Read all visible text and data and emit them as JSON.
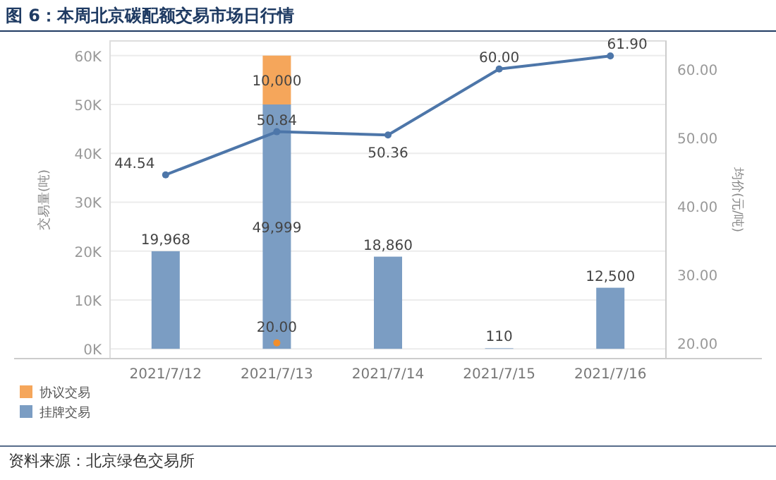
{
  "chart_data": {
    "type": "bar",
    "title": "图 6：本周北京碳配额交易市场日行情",
    "ylabel": "交易量(吨)",
    "y2label": "均价(元/吨)",
    "categories": [
      "2021/7/12",
      "2021/7/13",
      "2021/7/14",
      "2021/7/15",
      "2021/7/16"
    ],
    "stacked": true,
    "series": [
      {
        "name": "挂牌交易",
        "color": "#7b9dc3",
        "values": [
          19968,
          49999,
          18860,
          110,
          12500
        ],
        "value_labels": [
          "19,968",
          "49,999",
          "18,860",
          "110",
          "12,500"
        ]
      },
      {
        "name": "协议交易",
        "color": "#f5a65b",
        "values": [
          null,
          10000,
          null,
          null,
          null
        ],
        "value_labels": [
          null,
          "10,000",
          null,
          null,
          null
        ]
      },
      {
        "type": "line",
        "axis": "y2",
        "color": "#4d76a9",
        "marker": "circle",
        "values": [
          44.54,
          50.84,
          50.36,
          60.0,
          61.9
        ],
        "value_labels": [
          "44.54",
          "50.84",
          "50.36",
          "60.00",
          "61.90"
        ]
      },
      {
        "type": "scatter",
        "axis": "y2",
        "color": "#f28e2b",
        "marker": "circle",
        "values": [
          null,
          20.0,
          null,
          null,
          null
        ],
        "value_labels": [
          null,
          "20.00",
          null,
          null,
          null
        ]
      }
    ],
    "ylim": [
      -2000,
      63000
    ],
    "yticks": [
      {
        "value": 0,
        "label": "0K"
      },
      {
        "value": 10000,
        "label": "10K"
      },
      {
        "value": 20000,
        "label": "20K"
      },
      {
        "value": 30000,
        "label": "30K"
      },
      {
        "value": 40000,
        "label": "40K"
      },
      {
        "value": 50000,
        "label": "50K"
      },
      {
        "value": 60000,
        "label": "60K"
      }
    ],
    "y2lim": [
      17.7,
      64.1
    ],
    "y2ticks": [
      {
        "value": 20,
        "label": "20.00"
      },
      {
        "value": 30,
        "label": "30.00"
      },
      {
        "value": 40,
        "label": "40.00"
      },
      {
        "value": 50,
        "label": "50.00"
      },
      {
        "value": 60,
        "label": "60.00"
      }
    ],
    "grid": "y",
    "legend": "bottom left",
    "annotations": [
      "资料来源：北京绿色交易所"
    ]
  }
}
